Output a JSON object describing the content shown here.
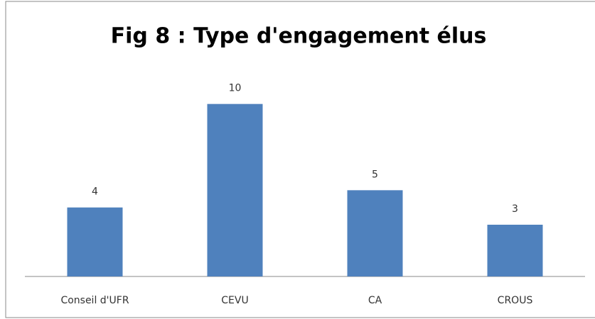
{
  "chart_data": {
    "type": "bar",
    "title": "Fig 8 : Type d'engagement élus",
    "categories": [
      "Conseil d'UFR",
      "CEVU",
      "CA",
      "CROUS"
    ],
    "values": [
      4,
      10,
      5,
      3
    ],
    "color": "#4f81bd",
    "ylim": [
      0,
      12
    ]
  }
}
